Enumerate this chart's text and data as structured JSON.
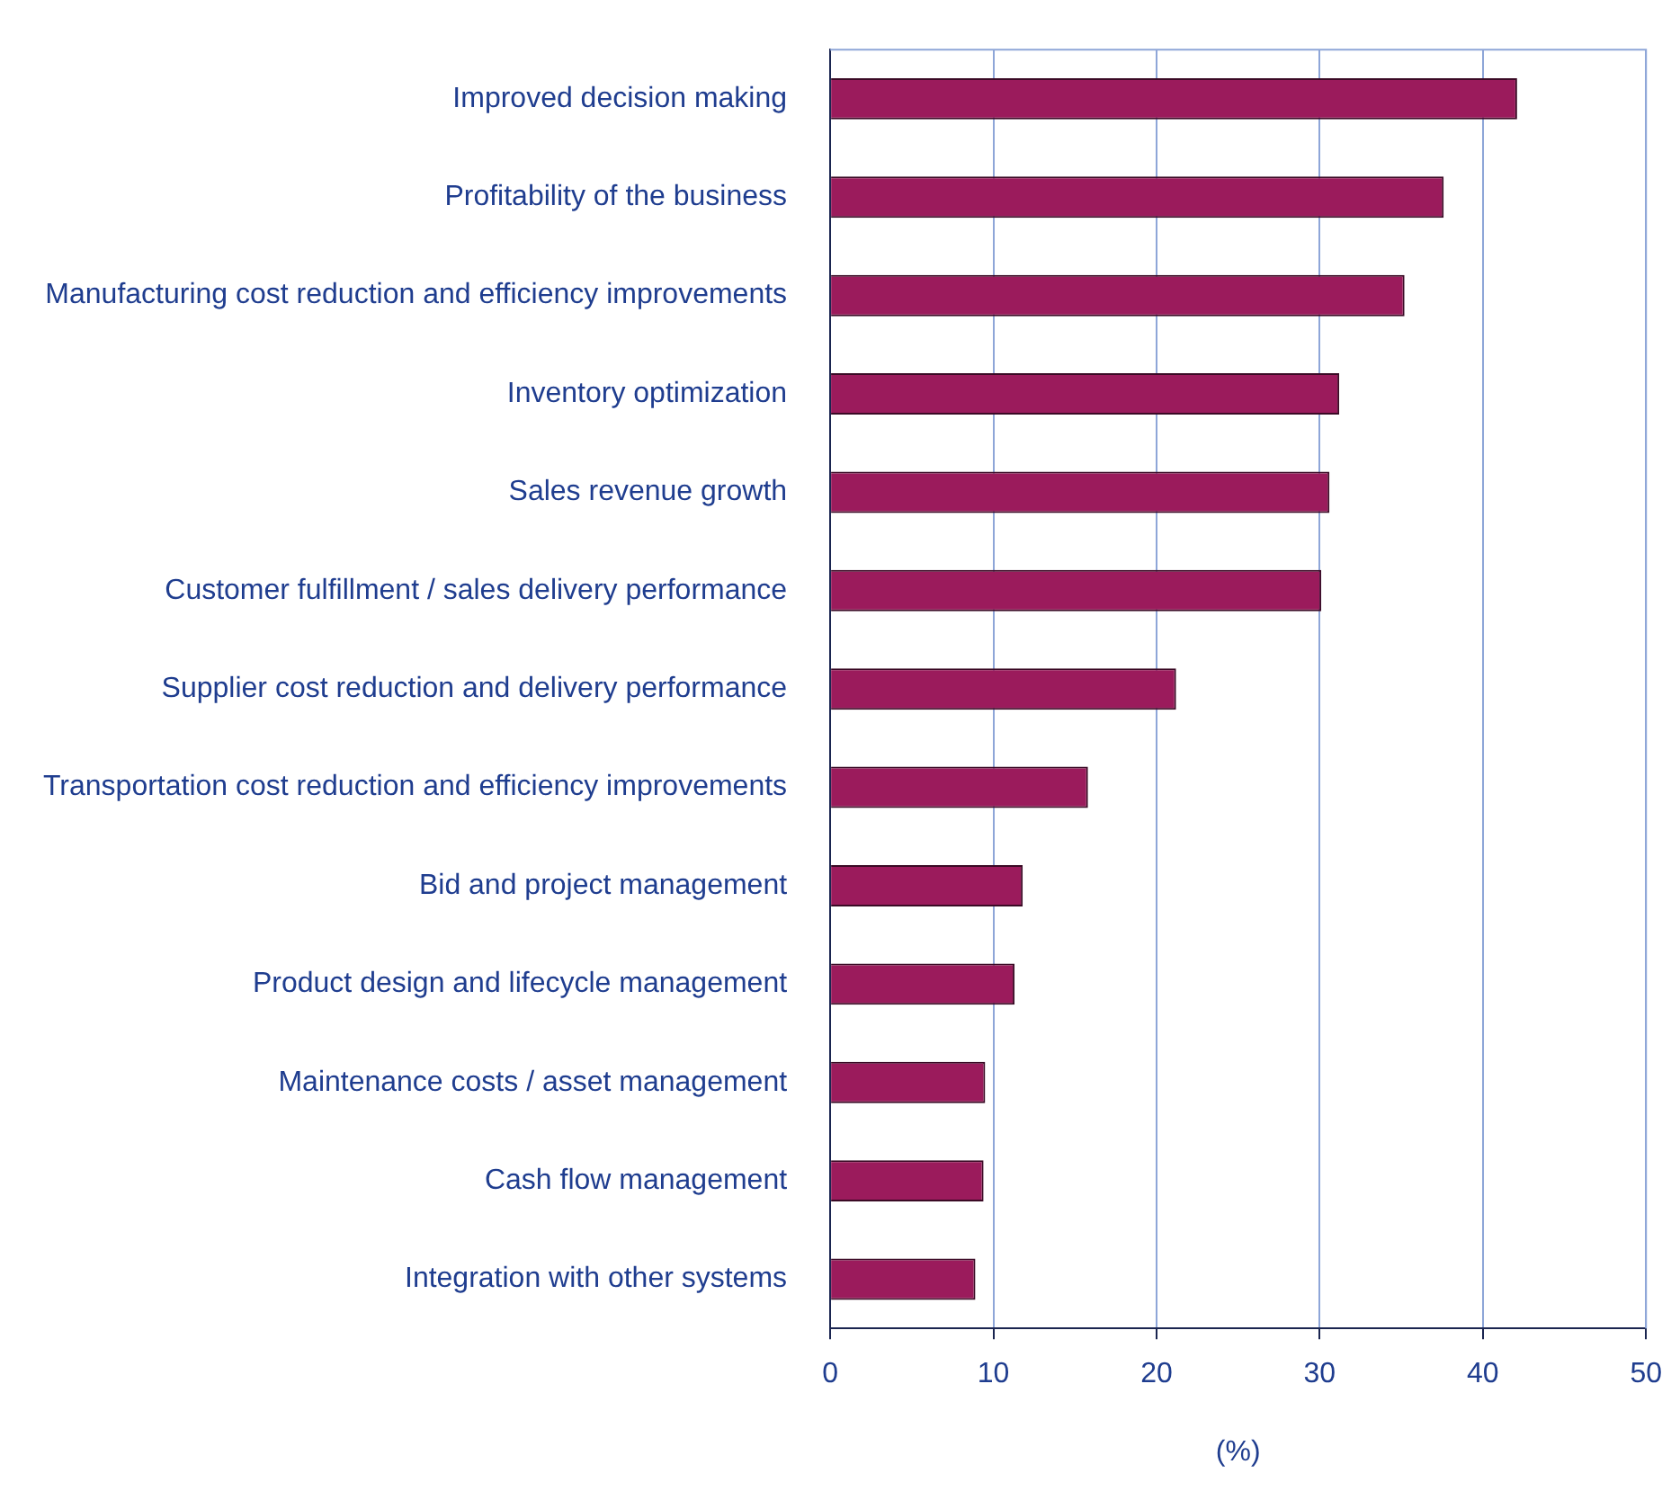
{
  "chart_data": {
    "type": "bar",
    "orientation": "horizontal",
    "xlabel": "(%)",
    "categories": [
      "Improved decision making",
      "Profitability of the business",
      "Manufacturing cost reduction and efficiency improvements",
      "Inventory optimization",
      "Sales revenue growth",
      "Customer fulfillment / sales delivery performance",
      "Supplier cost reduction and delivery performance",
      "Transportation cost reduction and efficiency improvements",
      "Bid and project management",
      "Product design and lifecycle management",
      "Maintenance costs / asset management",
      "Cash flow management",
      "Integration with other systems"
    ],
    "values": [
      42.1,
      37.6,
      35.2,
      31.2,
      30.6,
      30.1,
      21.2,
      15.8,
      11.8,
      11.3,
      9.5,
      9.4,
      8.9
    ],
    "color": "#9b1b5c",
    "xlim": [
      0,
      50
    ],
    "xticks": [
      0,
      10,
      20,
      30,
      40,
      50
    ],
    "grid": "x",
    "legend": false
  }
}
